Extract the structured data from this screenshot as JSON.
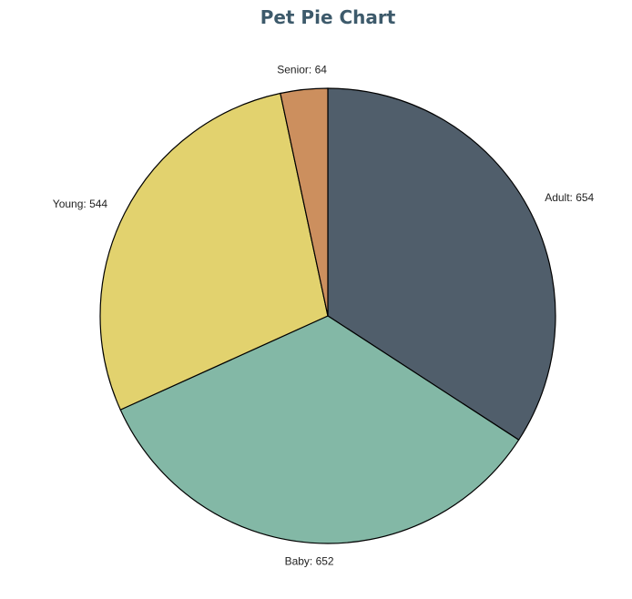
{
  "chart_data": {
    "type": "pie",
    "title": "Pet Pie Chart",
    "slices": [
      {
        "label": "Adult",
        "value": 654,
        "text": "Adult: 654",
        "color": "#505e6b"
      },
      {
        "label": "Baby",
        "value": 652,
        "text": "Baby: 652",
        "color": "#83b8a6"
      },
      {
        "label": "Young",
        "value": 544,
        "text": "Young: 544",
        "color": "#e2d26e"
      },
      {
        "label": "Senior",
        "value": 64,
        "text": "Senior: 64",
        "color": "#cc8f5e"
      }
    ],
    "start_angle": "12 o'clock",
    "direction": "clockwise",
    "slice_border_color": "#000000"
  }
}
